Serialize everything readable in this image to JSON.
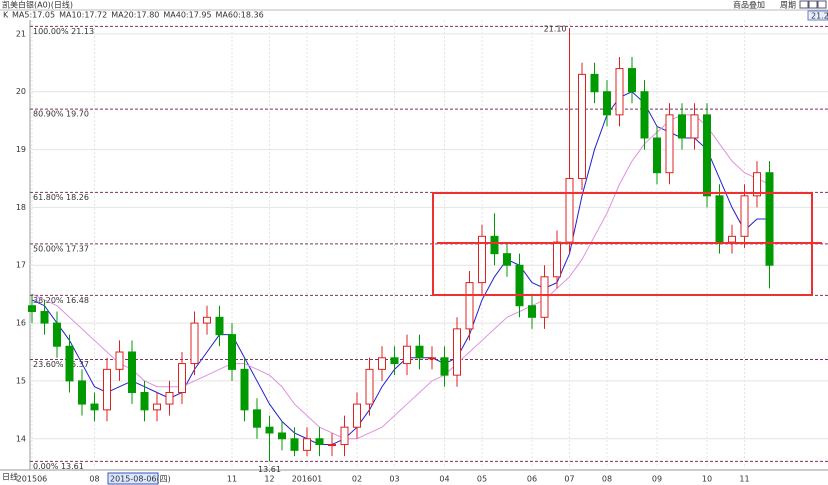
{
  "chart_data": {
    "type": "candlestick",
    "title": "凯美白银(A0)(日线)",
    "menu": [
      "商品叠加",
      "周期"
    ],
    "period_label": "日线",
    "k_label": "K",
    "indicators": [
      {
        "text": "MA5:17.05",
        "color": "#202020"
      },
      {
        "text": "MA10:17.72",
        "color": "#e08000"
      },
      {
        "text": "MA40:17.95",
        "color": "#000080"
      }
    ],
    "corner_price": "21.20",
    "cursor_label": "2015-08-06(四)",
    "high_label": "21.10",
    "low_label": "13.61",
    "ylim": [
      13.46,
      21.24
    ],
    "yticks": [
      14,
      15,
      16,
      17,
      18,
      19,
      20,
      21
    ],
    "grid": true,
    "up_color": "#e02020",
    "down_color": "#009a00",
    "fib_levels": [
      {
        "label": "100.00% 21.13",
        "value": 21.13
      },
      {
        "label": "80.90% 19.70",
        "value": 19.7
      },
      {
        "label": "61.80% 18.26",
        "value": 18.26
      },
      {
        "label": "50.00% 17.37",
        "value": 17.37
      },
      {
        "label": "38.20% 16.48",
        "value": 16.48
      },
      {
        "label": "23.60% 15.37",
        "value": 15.37
      },
      {
        "label": "0.00% 13.61",
        "value": 13.61
      }
    ],
    "categories": [
      "201506",
      null,
      null,
      null,
      null,
      "08",
      null,
      null,
      null,
      null,
      null,
      null,
      null,
      null,
      null,
      null,
      "11",
      null,
      null,
      "12",
      null,
      null,
      "201601",
      null,
      null,
      null,
      "02",
      null,
      null,
      "03",
      null,
      null,
      null,
      "04",
      null,
      null,
      "05",
      null,
      null,
      null,
      "06",
      null,
      null,
      "07",
      null,
      null,
      "08",
      null,
      null,
      null,
      "09",
      null,
      null,
      null,
      "10",
      null,
      null,
      "11",
      null,
      null
    ],
    "open": [
      16.3,
      16.2,
      16.0,
      15.6,
      15.0,
      14.6,
      14.5,
      15.2,
      15.5,
      14.8,
      14.5,
      14.6,
      14.8,
      15.3,
      16.0,
      16.1,
      15.8,
      15.2,
      14.5,
      14.2,
      14.1,
      14.0,
      13.8,
      14.0,
      13.9,
      13.9,
      14.2,
      14.6,
      15.2,
      15.4,
      15.3,
      15.6,
      15.4,
      15.4,
      15.1,
      15.9,
      16.7,
      17.5,
      17.2,
      17.0,
      16.3,
      16.1,
      16.8,
      17.4,
      18.5,
      20.3,
      20.0,
      19.6,
      20.4,
      20.0,
      19.2,
      18.6,
      19.6,
      19.2,
      19.6,
      18.2,
      17.4,
      17.5,
      18.2,
      18.6
    ],
    "high": [
      16.5,
      16.4,
      16.2,
      15.8,
      15.2,
      14.8,
      15.4,
      15.7,
      15.7,
      15.0,
      14.8,
      15.0,
      15.5,
      16.2,
      16.3,
      16.3,
      16.0,
      15.4,
      14.7,
      14.4,
      14.3,
      14.2,
      14.2,
      14.2,
      14.1,
      14.4,
      14.8,
      15.4,
      15.6,
      15.6,
      15.8,
      15.8,
      15.6,
      15.6,
      16.1,
      16.9,
      17.7,
      17.9,
      17.4,
      17.2,
      16.5,
      17.0,
      17.6,
      21.1,
      20.5,
      20.5,
      20.2,
      20.6,
      20.6,
      20.2,
      19.4,
      19.8,
      19.8,
      19.8,
      19.8,
      18.4,
      17.7,
      18.4,
      18.8,
      18.8
    ],
    "low": [
      16.0,
      15.8,
      15.4,
      14.8,
      14.4,
      14.3,
      14.3,
      15.0,
      14.6,
      14.3,
      14.3,
      14.4,
      14.6,
      15.1,
      15.8,
      15.6,
      15.0,
      14.3,
      14.0,
      13.61,
      13.8,
      13.7,
      13.7,
      13.7,
      13.7,
      13.7,
      14.0,
      14.4,
      15.0,
      15.1,
      15.1,
      15.2,
      15.2,
      14.9,
      14.9,
      15.7,
      16.5,
      17.0,
      16.8,
      16.1,
      15.9,
      15.9,
      16.6,
      17.2,
      18.3,
      19.8,
      19.4,
      19.4,
      19.8,
      19.0,
      18.4,
      18.4,
      19.0,
      19.0,
      18.0,
      17.2,
      17.2,
      17.3,
      18.0,
      16.6
    ],
    "close": [
      16.2,
      16.0,
      15.6,
      15.0,
      14.6,
      14.5,
      15.2,
      15.5,
      14.8,
      14.5,
      14.6,
      14.8,
      15.3,
      16.0,
      16.1,
      15.8,
      15.2,
      14.5,
      14.2,
      14.1,
      14.0,
      13.8,
      14.0,
      13.9,
      13.9,
      14.2,
      14.6,
      15.2,
      15.4,
      15.3,
      15.6,
      15.4,
      15.4,
      15.1,
      15.9,
      16.7,
      17.5,
      17.2,
      17.0,
      16.3,
      16.1,
      16.8,
      17.4,
      18.5,
      20.3,
      20.0,
      19.6,
      20.4,
      20.0,
      19.2,
      18.6,
      19.6,
      19.2,
      19.6,
      18.2,
      17.4,
      17.5,
      18.2,
      18.6,
      17.0
    ],
    "series": [
      {
        "name": "MA20:17.80",
        "color": "#2020d0",
        "values": [
          16.4,
          16.3,
          16.0,
          15.7,
          15.3,
          14.9,
          14.8,
          14.9,
          15.0,
          14.9,
          14.8,
          14.7,
          14.8,
          15.2,
          15.5,
          15.8,
          15.8,
          15.4,
          15.0,
          14.6,
          14.3,
          14.1,
          14.0,
          13.9,
          13.9,
          14.0,
          14.2,
          14.5,
          14.9,
          15.2,
          15.4,
          15.4,
          15.4,
          15.3,
          15.4,
          15.8,
          16.4,
          16.8,
          17.1,
          17.0,
          16.7,
          16.6,
          16.7,
          17.2,
          18.2,
          19.0,
          19.6,
          19.9,
          20.0,
          19.8,
          19.4,
          19.3,
          19.2,
          19.2,
          19.0,
          18.5,
          18.0,
          17.6,
          17.8,
          17.8
        ]
      },
      {
        "name": "MA60:18.36",
        "color": "#e090e0",
        "values": [
          16.5,
          16.4,
          16.3,
          16.1,
          15.9,
          15.7,
          15.5,
          15.3,
          15.2,
          15.0,
          14.9,
          14.9,
          14.9,
          15.0,
          15.1,
          15.2,
          15.3,
          15.3,
          15.2,
          15.1,
          14.9,
          14.6,
          14.4,
          14.2,
          14.1,
          14.0,
          14.0,
          14.1,
          14.2,
          14.4,
          14.6,
          14.8,
          15.0,
          15.1,
          15.3,
          15.5,
          15.7,
          15.9,
          16.1,
          16.2,
          16.3,
          16.4,
          16.6,
          16.8,
          17.1,
          17.5,
          17.9,
          18.4,
          18.8,
          19.1,
          19.3,
          19.5,
          19.6,
          19.6,
          19.4,
          19.1,
          18.8,
          18.6,
          18.5,
          18.4
        ]
      }
    ]
  }
}
